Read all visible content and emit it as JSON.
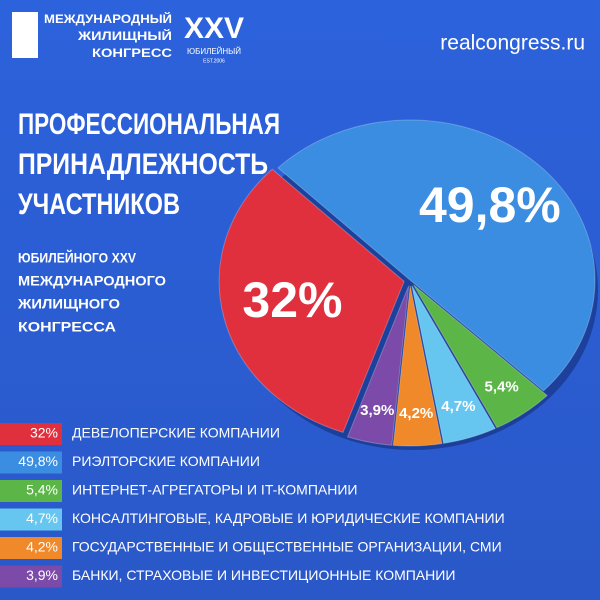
{
  "header": {
    "logo_lines": [
      "МЕЖДУНАРОДНЫЙ",
      "ЖИЛИЩНЫЙ",
      "КОНГРЕСС"
    ],
    "badge": "XXV",
    "badge_sub": "ЮБИЛЕЙНЫЙ",
    "est": "EST.2006",
    "site": "realcongress.ru"
  },
  "chart_data": {
    "type": "pie",
    "title": [
      "ПРОФЕССИОНАЛЬНАЯ",
      "ПРИНАДЛЕЖНОСТЬ",
      "УЧАСТНИКОВ"
    ],
    "subtitle": [
      "ЮБИЛЕЙНОГО XXV",
      "МЕЖДУНАРОДНОГО",
      "ЖИЛИЩНОГО",
      "КОНГРЕССА"
    ],
    "categories": [
      "ДЕВЕЛОПЕРСКИЕ КОМПАНИИ",
      "РИЭЛТОРСКИЕ КОМПАНИИ",
      "ИНТЕРНЕТ-АГРЕГАТОРЫ И IT-КОМПАНИИ",
      "КОНСАЛТИНГОВЫЕ, КАДРОВЫЕ И ЮРИДИЧЕСКИЕ КОМПАНИИ",
      "ГОСУДАРСТВЕННЫЕ И ОБЩЕСТВЕННЫЕ ОРГАНИЗАЦИИ, СМИ",
      "БАНКИ, СТРАХОВЫЕ И ИНВЕСТИЦИОННЫЕ КОМПАНИИ"
    ],
    "values": [
      32,
      49.8,
      5.4,
      4.7,
      4.2,
      3.9
    ],
    "value_labels": [
      "32%",
      "49,8%",
      "5,4%",
      "4,7%",
      "4,2%",
      "3,9%"
    ],
    "colors": [
      "#e0303e",
      "#3a8de0",
      "#5cb647",
      "#66c6f0",
      "#f0892a",
      "#7c4aa8"
    ]
  }
}
